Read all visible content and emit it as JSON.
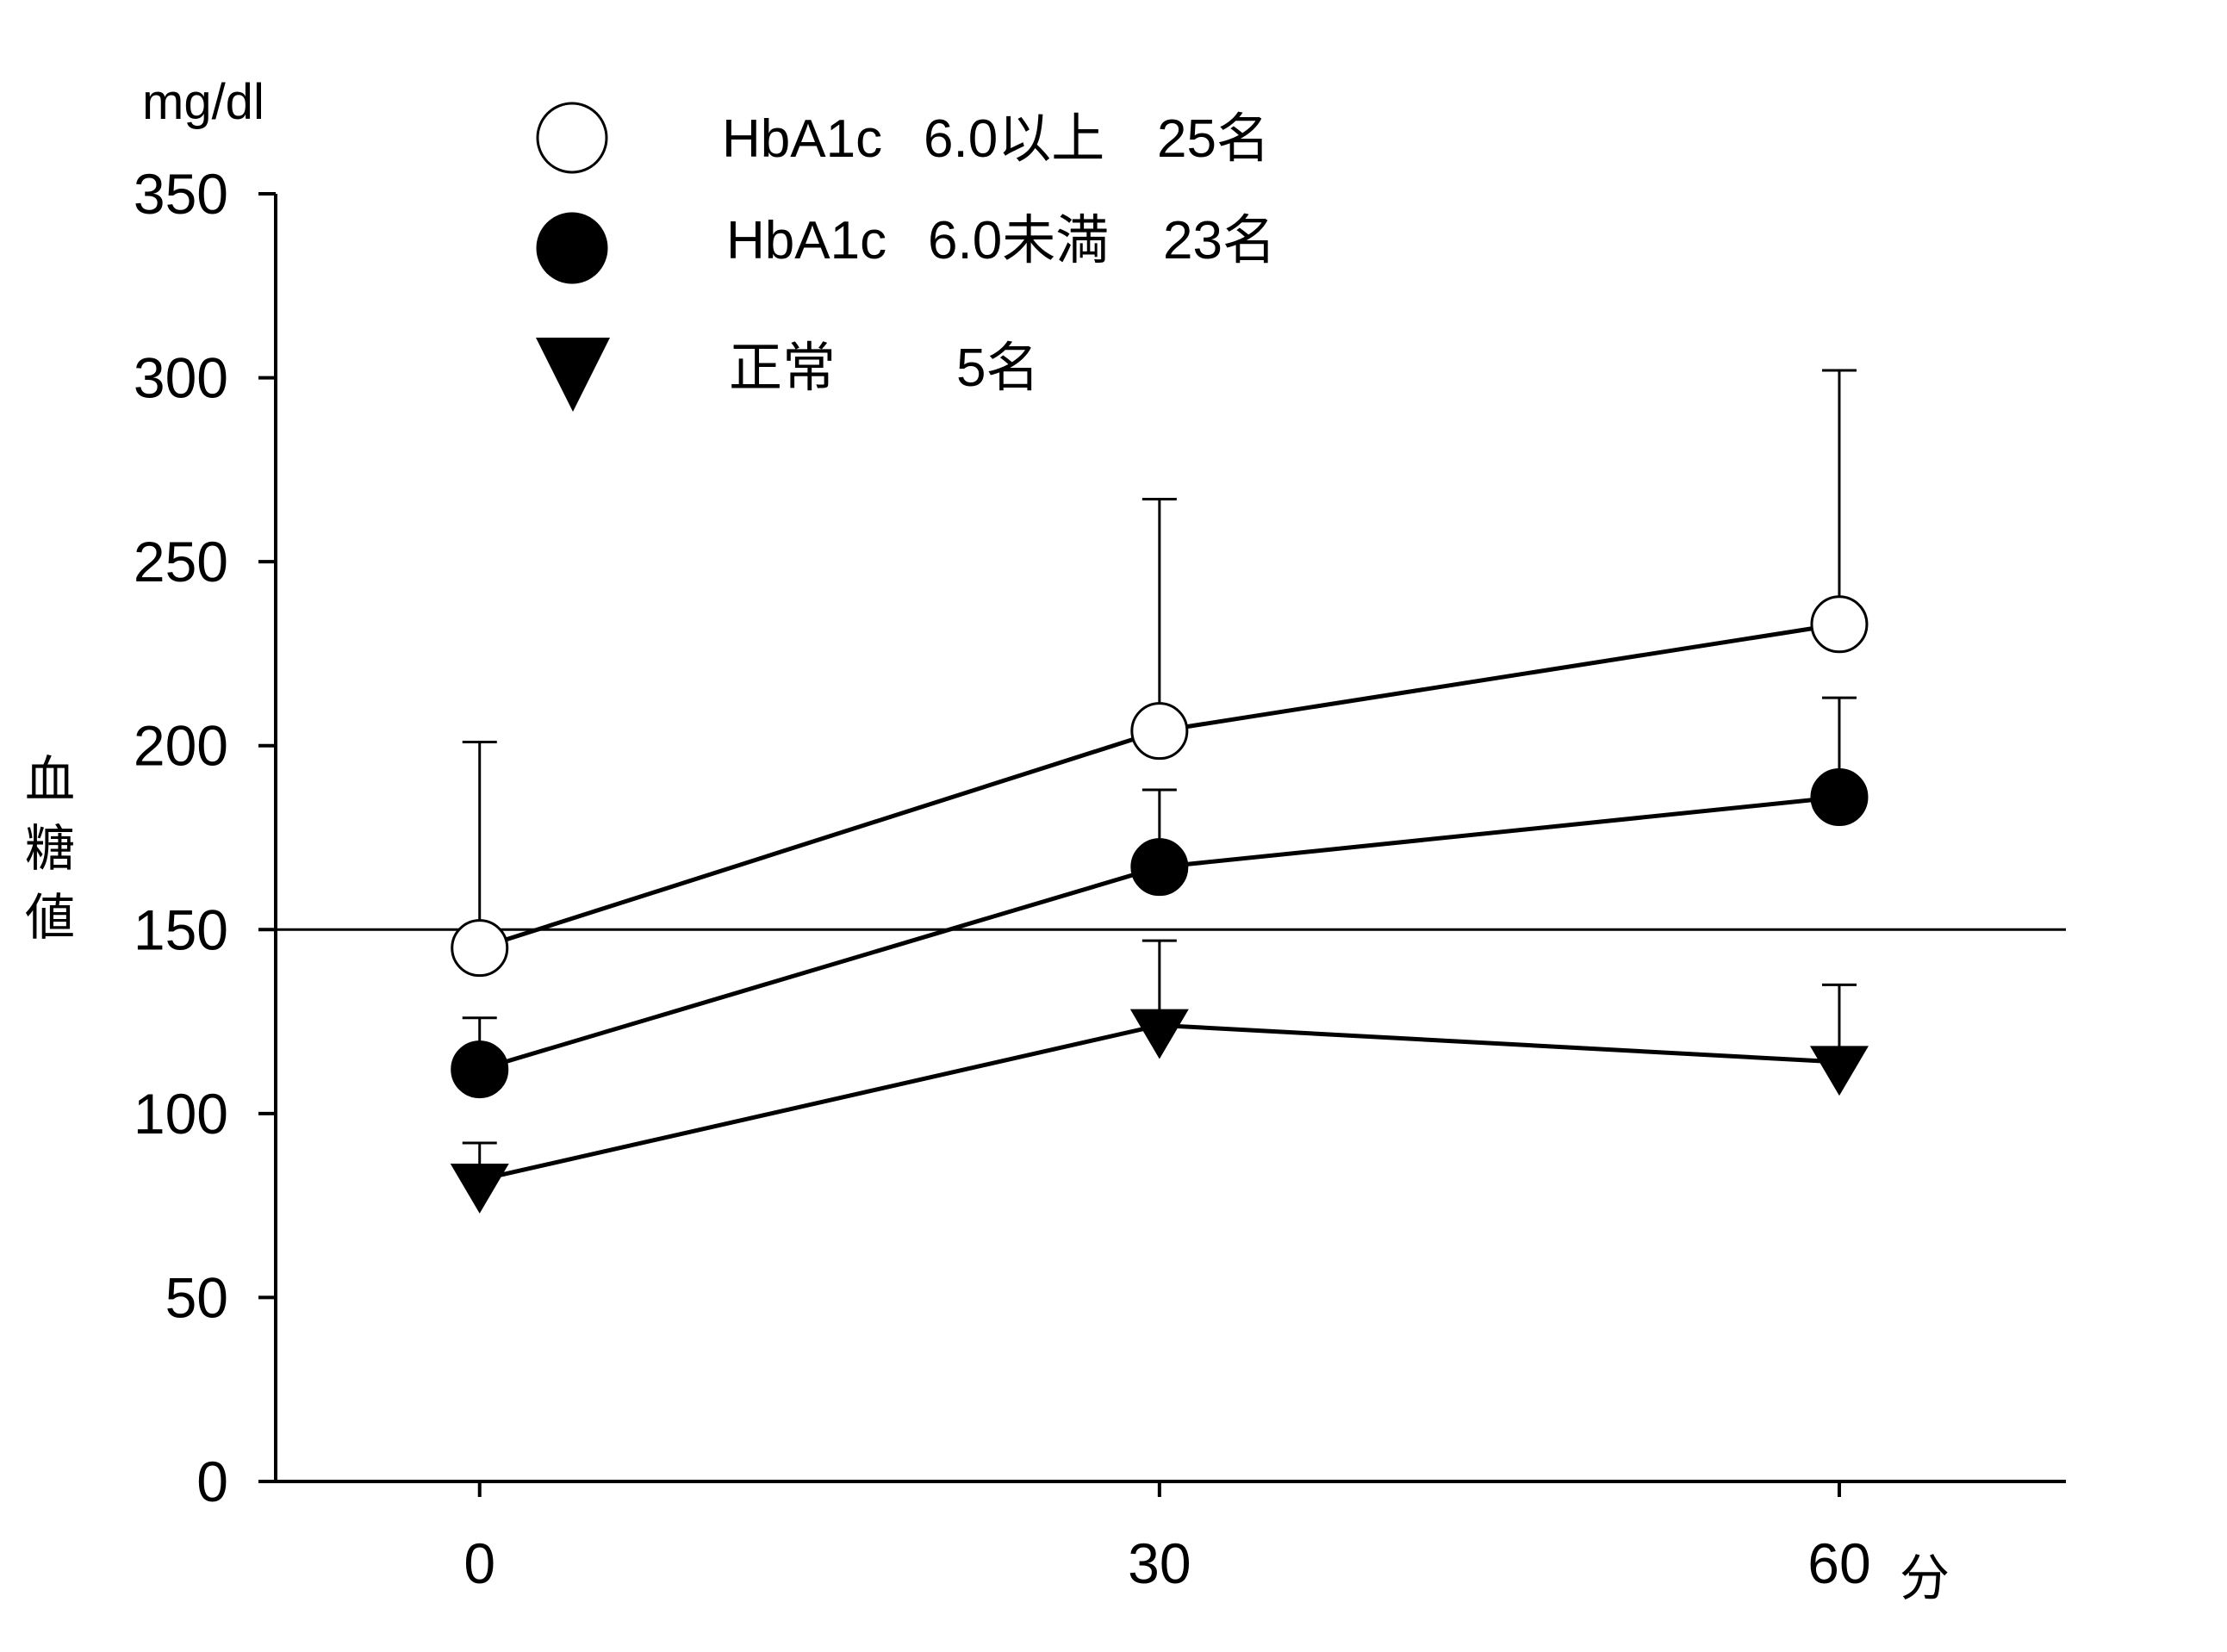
{
  "chart_data": {
    "type": "line",
    "title": "",
    "y_unit": "mg/dl",
    "ylabel": "血糖値",
    "x_unit": "分",
    "x": [
      0,
      30,
      60
    ],
    "x_tick_labels": [
      "0",
      "30",
      "60"
    ],
    "xlim": [
      -9,
      70
    ],
    "ylim": [
      0,
      350
    ],
    "y_ticks": [
      0,
      50,
      100,
      150,
      200,
      250,
      300,
      350
    ],
    "reference_line_y": 150,
    "grid": false,
    "legend_position": "top-left",
    "series": [
      {
        "name": "HbA1c 6.0以上 25名",
        "legend_parts": [
          "HbA1c",
          "6.0以上",
          "25名"
        ],
        "marker": "open-circle",
        "values": [
          145,
          204,
          233
        ],
        "error_upper": [
          201,
          267,
          302
        ]
      },
      {
        "name": "HbA1c 6.0未満 23名",
        "legend_parts": [
          "HbA1c",
          "6.0未満",
          "23名"
        ],
        "marker": "filled-circle",
        "values": [
          112,
          167,
          186
        ],
        "error_upper": [
          126,
          188,
          213
        ]
      },
      {
        "name": "正常 5名",
        "legend_parts": [
          "正常",
          "",
          "5名"
        ],
        "marker": "filled-triangle-down",
        "values": [
          82,
          124,
          114
        ],
        "error_upper": [
          92,
          147,
          135
        ]
      }
    ]
  }
}
